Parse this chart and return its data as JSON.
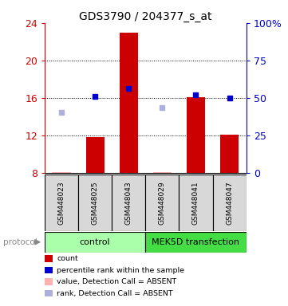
{
  "title": "GDS3790 / 204377_s_at",
  "samples": [
    "GSM448023",
    "GSM448025",
    "GSM448043",
    "GSM448029",
    "GSM448041",
    "GSM448047"
  ],
  "bar_values": [
    8.05,
    11.8,
    23.0,
    8.05,
    16.1,
    12.1
  ],
  "bar_base": 8.0,
  "bar_color": "#cc0000",
  "bar_width": 0.55,
  "dot_values": [
    null,
    16.2,
    17.0,
    null,
    16.3,
    16.0
  ],
  "dot_color": "#0000cc",
  "absent_bar_values": [
    8.05,
    null,
    null,
    8.05,
    null,
    null
  ],
  "absent_bar_color": "#ffb0b0",
  "absent_dot_values": [
    14.5,
    null,
    null,
    15.0,
    null,
    null
  ],
  "absent_dot_color": "#b0b0dd",
  "ylim_left": [
    8,
    24
  ],
  "ylim_right": [
    0,
    100
  ],
  "yticks_left": [
    8,
    12,
    16,
    20,
    24
  ],
  "ytick_labels_left": [
    "8",
    "12",
    "16",
    "20",
    "24"
  ],
  "yticks_right": [
    0,
    25,
    50,
    75,
    100
  ],
  "ytick_labels_right": [
    "0",
    "25",
    "50",
    "75",
    "100%"
  ],
  "left_axis_color": "#cc0000",
  "right_axis_color": "#0000cc",
  "grid_lines": [
    12,
    16,
    20
  ],
  "group_control_color": "#aaffaa",
  "group_mek5d_color": "#44dd44",
  "legend_items": [
    {
      "label": "count",
      "color": "#cc0000"
    },
    {
      "label": "percentile rank within the sample",
      "color": "#0000cc"
    },
    {
      "label": "value, Detection Call = ABSENT",
      "color": "#ffb0b0"
    },
    {
      "label": "rank, Detection Call = ABSENT",
      "color": "#b0b0dd"
    }
  ],
  "figsize": [
    3.61,
    3.84
  ],
  "dpi": 100
}
